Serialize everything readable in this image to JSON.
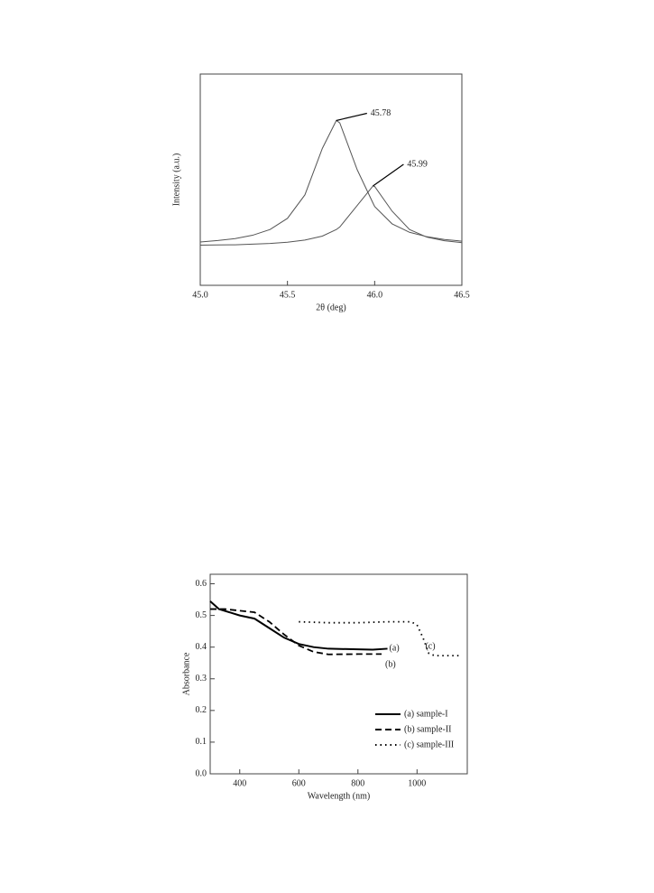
{
  "chart_data": [
    {
      "type": "line",
      "xlabel": "2θ (deg)",
      "ylabel": "Intensity (a.u.)",
      "x": [
        45.0,
        45.1,
        45.2,
        45.3,
        45.4,
        45.5,
        45.6,
        45.7,
        45.78,
        45.8,
        45.9,
        45.99,
        46.0,
        46.1,
        46.2,
        46.3,
        46.4,
        46.5
      ],
      "series": [
        {
          "name": "45.78",
          "color": "#555555",
          "dash": "solid",
          "values": [
            0.205,
            0.212,
            0.221,
            0.237,
            0.264,
            0.317,
            0.428,
            0.648,
            0.78,
            0.769,
            0.547,
            0.39,
            0.373,
            0.291,
            0.251,
            0.23,
            0.217,
            0.209
          ]
        },
        {
          "name": "45.99",
          "color": "#555555",
          "dash": "solid",
          "values": [
            0.19,
            0.191,
            0.192,
            0.195,
            0.198,
            0.204,
            0.214,
            0.233,
            0.264,
            0.276,
            0.378,
            0.47,
            0.468,
            0.351,
            0.264,
            0.228,
            0.211,
            0.202
          ]
        }
      ],
      "xlim": [
        45.0,
        46.5
      ],
      "xticks": [
        {
          "value": 45.0,
          "label": "45.0"
        },
        45.5,
        {
          "value": 46.0,
          "label": "46.0"
        },
        46.5
      ],
      "ylim": [
        0,
        1
      ],
      "legend": false
    },
    {
      "type": "line",
      "xlabel": "Wavelength (nm)",
      "ylabel": "Absorbance",
      "series": [
        {
          "name": "(a) sample-I",
          "label": "(a)",
          "color": "#000000",
          "dash": "solid",
          "x": [
            300,
            330,
            400,
            450,
            500,
            550,
            600,
            650,
            700,
            800,
            850,
            900
          ],
          "values": [
            0.545,
            0.52,
            0.5,
            0.49,
            0.46,
            0.43,
            0.41,
            0.4,
            0.395,
            0.393,
            0.392,
            0.395
          ]
        },
        {
          "name": "(b) sample-II",
          "label": "(b)",
          "color": "#000000",
          "dash": "dashed",
          "x": [
            300,
            350,
            400,
            450,
            500,
            550,
            600,
            650,
            700,
            800,
            880
          ],
          "values": [
            0.52,
            0.52,
            0.515,
            0.51,
            0.48,
            0.44,
            0.405,
            0.385,
            0.377,
            0.378,
            0.378
          ]
        },
        {
          "name": "(c) sample-III",
          "label": "(c)",
          "color": "#000000",
          "dash": "dotted",
          "x": [
            600,
            700,
            800,
            900,
            980,
            1000,
            1020,
            1040,
            1060,
            1100,
            1150
          ],
          "values": [
            0.48,
            0.477,
            0.477,
            0.48,
            0.48,
            0.47,
            0.43,
            0.38,
            0.373,
            0.373,
            0.373
          ]
        }
      ],
      "xlim": [
        300,
        1170
      ],
      "xticks": [
        400,
        600,
        800,
        1000
      ],
      "ylim": [
        0,
        0.63
      ],
      "yticks": [
        {
          "value": 0,
          "label": "0.0"
        },
        0.1,
        0.2,
        0.3,
        0.4,
        0.5,
        0.6
      ],
      "legend": "lower right"
    }
  ]
}
